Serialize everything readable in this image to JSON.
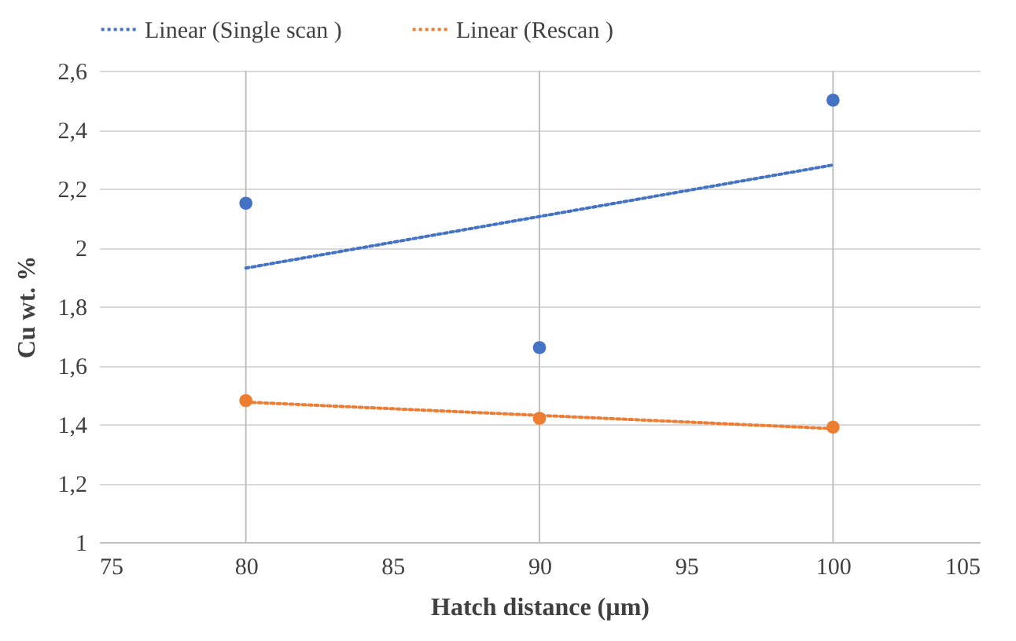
{
  "chart_data": {
    "type": "scatter",
    "xlabel": "Hatch distance (µm)",
    "ylabel": "Cu wt. %",
    "xlim": [
      75,
      105
    ],
    "xticks": [
      75,
      80,
      85,
      90,
      95,
      100,
      105
    ],
    "ylim": [
      1,
      2.6
    ],
    "yticks": [
      1,
      {
        "value": 1.2,
        "label": "1,2"
      },
      {
        "value": 1.4,
        "label": "1,4"
      },
      {
        "value": 1.6,
        "label": "1,6"
      },
      {
        "value": 1.8,
        "label": "1,8"
      },
      2,
      {
        "value": 2.2,
        "label": "2,2"
      },
      {
        "value": 2.4,
        "label": "2,4"
      },
      {
        "value": 2.6,
        "label": "2,6"
      }
    ],
    "grid": "y",
    "legend": "top",
    "marker": "circle",
    "ref_lines": [
      {
        "axis": "x",
        "value": 80,
        "color": "#bfbfbf"
      },
      {
        "axis": "x",
        "value": 90,
        "color": "#bfbfbf"
      },
      {
        "axis": "x",
        "value": 100,
        "color": "#bfbfbf"
      }
    ],
    "series": [
      {
        "type": "scatter",
        "color": "#4472c4",
        "x": [
          80,
          90,
          100
        ],
        "values": [
          2.15,
          1.66,
          2.5
        ]
      },
      {
        "type": "scatter",
        "color": "#ed7d31",
        "x": [
          80,
          90,
          100
        ],
        "values": [
          1.48,
          1.42,
          1.39
        ]
      },
      {
        "type": "line",
        "name": "Linear (Single scan )",
        "color": "#4472c4",
        "line_style": "dotted",
        "marker": "none",
        "x": [
          80,
          100
        ],
        "values": [
          1.93,
          2.28
        ]
      },
      {
        "type": "line",
        "name": "Linear (Rescan )",
        "color": "#ed7d31",
        "line_style": "dotted",
        "marker": "none",
        "x": [
          80,
          100
        ],
        "values": [
          1.475,
          1.385
        ]
      }
    ]
  }
}
